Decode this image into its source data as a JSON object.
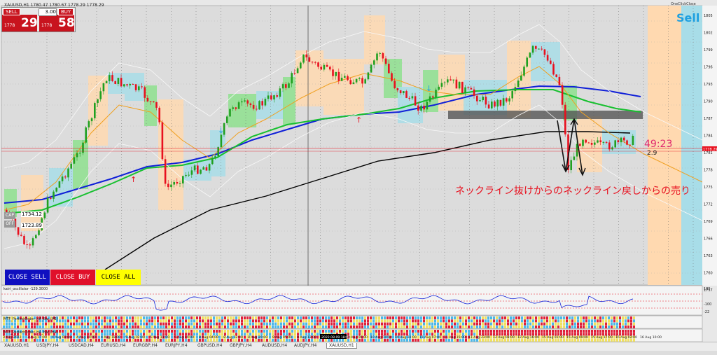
{
  "chart_data": {
    "type": "candlestick",
    "symbol": "XAUUSD,H1",
    "header": "XAUUSD,H1  1780.47 1780.67 1778.29 1778.29",
    "x": [
      "3 Aug 2022",
      "3 Aug 17:00",
      "4 Aug 02:00",
      "4 Aug 10:00",
      "4 Aug 18:00",
      "5 Aug 02:00",
      "5 Aug 11:00",
      "5 Aug 19:00",
      "8 Aug 04:00",
      "8 Aug 12:00",
      "8 Aug 20:00",
      "9 Aug 05:00",
      "9 Aug 13:00",
      "2022.08.09 18:00",
      "10 Aug 06:00",
      "10 Aug 14:00",
      "10 Aug 22:00",
      "11 Aug 07:00",
      "11 Aug 15:00",
      "11 Aug 23:00",
      "12 Aug 08:00",
      "12 Aug 16:00",
      "15 Aug 01:00",
      "15 Aug 09:00",
      "15 Aug 17:00",
      "16 Aug 02:00",
      "16 Aug 10:00"
    ],
    "y_ticks": [
      "1805",
      "1802",
      "1799",
      "1796",
      "1793",
      "1790",
      "1787",
      "1784",
      "1781",
      "1778",
      "1775",
      "1772",
      "1769",
      "1766",
      "1763",
      "1760",
      "1757"
    ],
    "highlight_timestamp": "2022.08.09 18:00",
    "current_price": "1778.29"
  },
  "trade_panel": {
    "sell_label": "SELL",
    "buy_label": "BUY",
    "lots": "3.00",
    "sell_prefix": "1778",
    "sell_big": "29",
    "buy_prefix": "1778",
    "buy_big": "58"
  },
  "buttons": {
    "close_sell": "CLOSE SELL",
    "close_buy": "CLOSE BUY",
    "close_all": "CLOSE ALL"
  },
  "markers": {
    "cap": "CAP",
    "off": "OFF",
    "price_a": "1734.12",
    "price_b": "1723.89"
  },
  "signal": "Sell",
  "one_click": "OneClickClose",
  "annotation": "ネックライン抜けからのネックライン戻しからの売り",
  "timer": "49:23",
  "timer_sub": "2.9",
  "oscillator_label": "kairi_oscillator -129.3000",
  "osc_ticks": [
    "185",
    "",
    "-100",
    "-22"
  ],
  "strength_label_1": "MTF_PerfectOrder_HA_Bar (M1)",
  "strength_label_2": "MTF_PerfectOrder_HA_Bar (H4)",
  "tabs": [
    "XAUUSD,H1",
    "USDJPY,H4",
    "USDCAD,H4",
    "EURUSD,H4",
    "EURGBP,H4",
    "EURJPY,H4",
    "GBPUSD,H4",
    "GBPJPY,H4",
    "AUDUSD,H4",
    "AUDJPY,H4",
    "XAUUSD,H1"
  ],
  "colors": {
    "bull": "#20a020",
    "bear": "#e8101e",
    "ma_blue": "#1020d8",
    "ma_green": "#18c030",
    "ma_orange": "#f0a020",
    "ma_black": "#000000",
    "band_orange": "#ffd9b0",
    "band_blue": "#a8dde8",
    "band_green": "#8ee08e"
  }
}
